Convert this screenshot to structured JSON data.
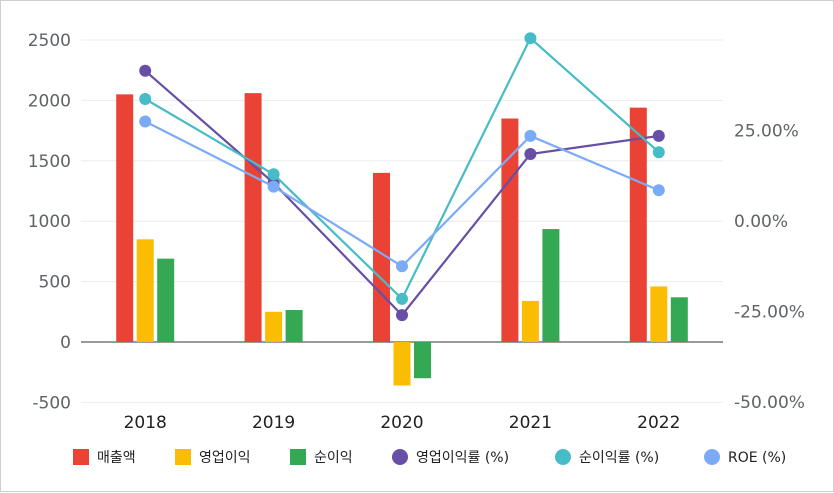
{
  "chart_data": {
    "type": "bar",
    "categories": [
      "2018",
      "2019",
      "2020",
      "2021",
      "2022"
    ],
    "left_axis": {
      "ticks": [
        "2500",
        "2000",
        "1500",
        "1000",
        "500",
        "0",
        "-500"
      ],
      "ylim": [
        -500,
        2500
      ]
    },
    "right_axis": {
      "ticks": [
        "25.00%",
        "0.00%",
        "-25.00%",
        "-50.00%"
      ],
      "ylim": [
        -50,
        50
      ]
    },
    "series": [
      {
        "name": "매출액",
        "kind": "bar",
        "axis": "left",
        "color": "#ea4335",
        "values": [
          2050,
          2060,
          1400,
          1850,
          1940
        ]
      },
      {
        "name": "영업이익",
        "kind": "bar",
        "axis": "left",
        "color": "#fbbc04",
        "values": [
          850,
          250,
          -360,
          340,
          460
        ]
      },
      {
        "name": "순이익",
        "kind": "bar",
        "axis": "left",
        "color": "#34a853",
        "values": [
          690,
          265,
          -300,
          935,
          370
        ]
      },
      {
        "name": "영업이익률 (%)",
        "kind": "line",
        "axis": "right",
        "color": "#674ea7",
        "values": [
          41.5,
          10.5,
          -26,
          18.5,
          23.5
        ]
      },
      {
        "name": "순이익률 (%)",
        "kind": "line",
        "axis": "right",
        "color": "#46bdc6",
        "values": [
          33.7,
          12.9,
          -21.5,
          50.5,
          19
        ]
      },
      {
        "name": "ROE (%)",
        "kind": "line",
        "axis": "right",
        "color": "#7baaf7",
        "values": [
          27.5,
          9.5,
          -12.5,
          23.5,
          8.5
        ]
      }
    ],
    "grid": true,
    "legend": "bottom"
  }
}
